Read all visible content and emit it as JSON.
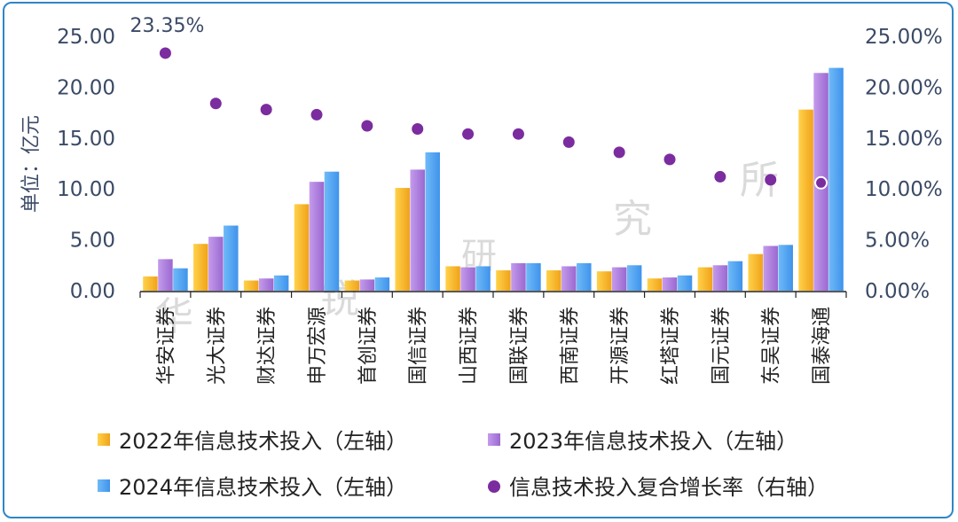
{
  "chart_data": {
    "type": "bar",
    "categories": [
      "华安证券",
      "光大证券",
      "财达证券",
      "申万宏源",
      "首创证券",
      "国信证券",
      "山西证券",
      "国联证券",
      "西南证券",
      "开源证券",
      "红塔证券",
      "国元证券",
      "东吴证券",
      "国泰海通"
    ],
    "series": [
      {
        "name": "2022年信息技术投入（左轴）",
        "axis": "left",
        "color": "#f5b21f",
        "values": [
          1.4,
          4.6,
          1.0,
          8.5,
          1.0,
          10.1,
          2.4,
          2.0,
          2.0,
          1.9,
          1.2,
          2.3,
          3.6,
          17.8
        ]
      },
      {
        "name": "2023年信息技术投入（左轴）",
        "axis": "left",
        "color": "#a475d6",
        "values": [
          3.1,
          5.3,
          1.2,
          10.7,
          1.1,
          11.9,
          2.3,
          2.7,
          2.4,
          2.3,
          1.3,
          2.5,
          4.4,
          21.4
        ]
      },
      {
        "name": "2024年信息技术投入（左轴）",
        "axis": "left",
        "color": "#4aa3f2",
        "values": [
          2.2,
          6.4,
          1.5,
          11.7,
          1.3,
          13.6,
          2.4,
          2.7,
          2.7,
          2.5,
          1.5,
          2.9,
          4.5,
          21.9
        ]
      },
      {
        "name": "信息技术投入复合增长率（右轴）",
        "axis": "right",
        "type": "scatter",
        "color": "#7b2c9f",
        "values": [
          23.35,
          18.4,
          17.8,
          17.3,
          16.2,
          15.9,
          15.4,
          15.4,
          14.6,
          13.6,
          12.9,
          11.2,
          10.9,
          10.6
        ]
      }
    ],
    "ylabel": "单位：亿元",
    "ylim": [
      0,
      25
    ],
    "y_ticks": [
      "0.00",
      "5.00",
      "10.00",
      "15.00",
      "20.00",
      "25.00"
    ],
    "y2lim": [
      0,
      25
    ],
    "y2_ticks": [
      "0.00%",
      "5.00%",
      "10.00%",
      "15.00%",
      "20.00%",
      "25.00%"
    ],
    "annotation": "23.35%",
    "legend_position": "bottom",
    "grid": false
  },
  "watermark": [
    "华",
    "锐",
    "研",
    "究",
    "所"
  ]
}
